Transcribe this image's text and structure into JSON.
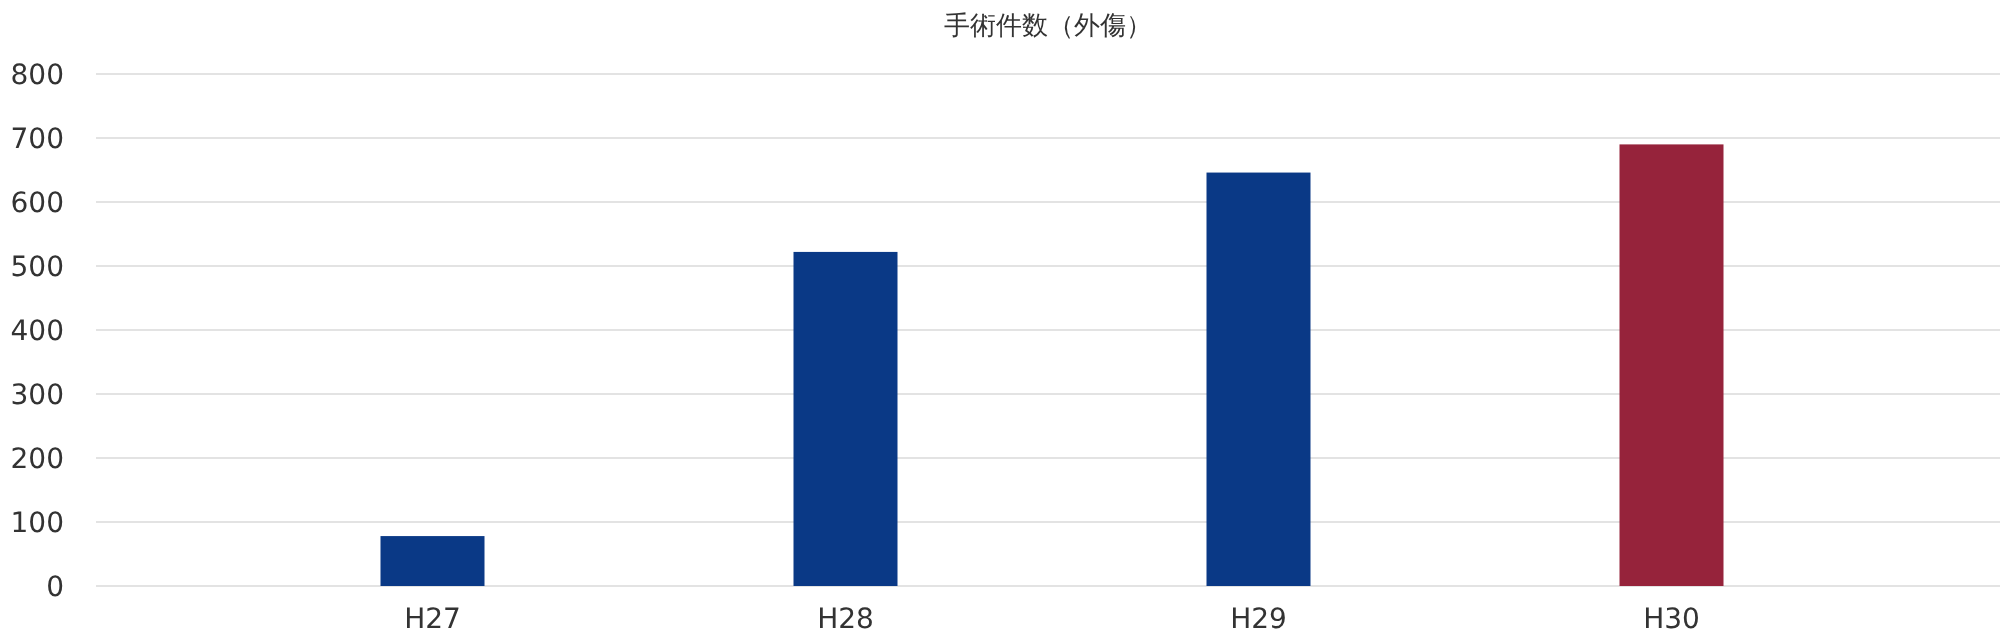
{
  "chart_data": {
    "type": "bar",
    "title": "手術件数（外傷）",
    "categories": [
      "H27",
      "H28",
      "H29",
      "H30"
    ],
    "values": [
      78,
      522,
      646,
      690
    ],
    "colors": [
      "#0a3986",
      "#0a3986",
      "#0a3986",
      "#96233b"
    ],
    "ylim": [
      0,
      800
    ],
    "yticks": [
      0,
      100,
      200,
      300,
      400,
      500,
      600,
      700,
      800
    ],
    "grid": "y"
  }
}
